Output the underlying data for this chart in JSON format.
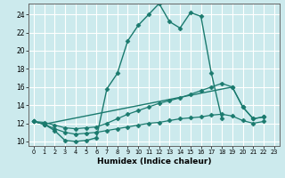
{
  "xlabel": "Humidex (Indice chaleur)",
  "bg_color": "#cceaed",
  "grid_color": "#ffffff",
  "line_color": "#1a7a6e",
  "xlim": [
    -0.5,
    23.5
  ],
  "ylim": [
    9.5,
    25.2
  ],
  "yticks": [
    10,
    12,
    14,
    16,
    18,
    20,
    22,
    24
  ],
  "xticks": [
    0,
    1,
    2,
    3,
    4,
    5,
    6,
    7,
    8,
    9,
    10,
    11,
    12,
    13,
    14,
    15,
    16,
    17,
    18,
    19,
    20,
    21,
    22,
    23
  ],
  "series": [
    {
      "x": [
        0,
        1,
        2,
        3,
        4,
        5,
        6,
        7,
        8,
        9,
        10,
        11,
        12,
        13,
        14,
        15,
        16,
        17,
        18
      ],
      "y": [
        12.2,
        11.9,
        11.2,
        10.1,
        10.0,
        10.1,
        10.4,
        15.8,
        17.5,
        21.1,
        22.8,
        24.0,
        25.2,
        23.2,
        22.5,
        24.2,
        23.8,
        17.5,
        12.5
      ],
      "marker": "D",
      "markersize": 2.5,
      "linestyle": "-",
      "linewidth": 1.0
    },
    {
      "x": [
        0,
        1,
        19,
        20,
        21,
        22
      ],
      "y": [
        12.2,
        11.9,
        16.0,
        13.8,
        12.5,
        12.7
      ],
      "marker": "D",
      "markersize": 2.5,
      "linestyle": "-",
      "linewidth": 1.0
    },
    {
      "x": [
        0,
        1,
        2,
        3,
        4,
        5,
        6,
        7,
        8,
        9,
        10,
        11,
        12,
        13,
        14,
        15,
        16,
        17,
        18,
        19,
        20,
        21,
        22
      ],
      "y": [
        12.2,
        12.1,
        11.8,
        11.5,
        11.4,
        11.5,
        11.6,
        12.0,
        12.5,
        13.0,
        13.4,
        13.8,
        14.2,
        14.5,
        14.8,
        15.2,
        15.6,
        16.0,
        16.4,
        16.0,
        13.8,
        12.5,
        12.7
      ],
      "marker": "D",
      "markersize": 2.5,
      "linestyle": "-",
      "linewidth": 0.9
    },
    {
      "x": [
        0,
        1,
        2,
        3,
        4,
        5,
        6,
        7,
        8,
        9,
        10,
        11,
        12,
        13,
        14,
        15,
        16,
        17,
        18,
        19,
        20,
        21,
        22
      ],
      "y": [
        12.2,
        11.9,
        11.4,
        11.0,
        10.8,
        10.9,
        11.0,
        11.2,
        11.4,
        11.6,
        11.8,
        12.0,
        12.1,
        12.3,
        12.5,
        12.6,
        12.7,
        12.9,
        13.0,
        12.8,
        12.3,
        12.0,
        12.2
      ],
      "marker": "D",
      "markersize": 2.5,
      "linestyle": "-",
      "linewidth": 0.9
    }
  ]
}
